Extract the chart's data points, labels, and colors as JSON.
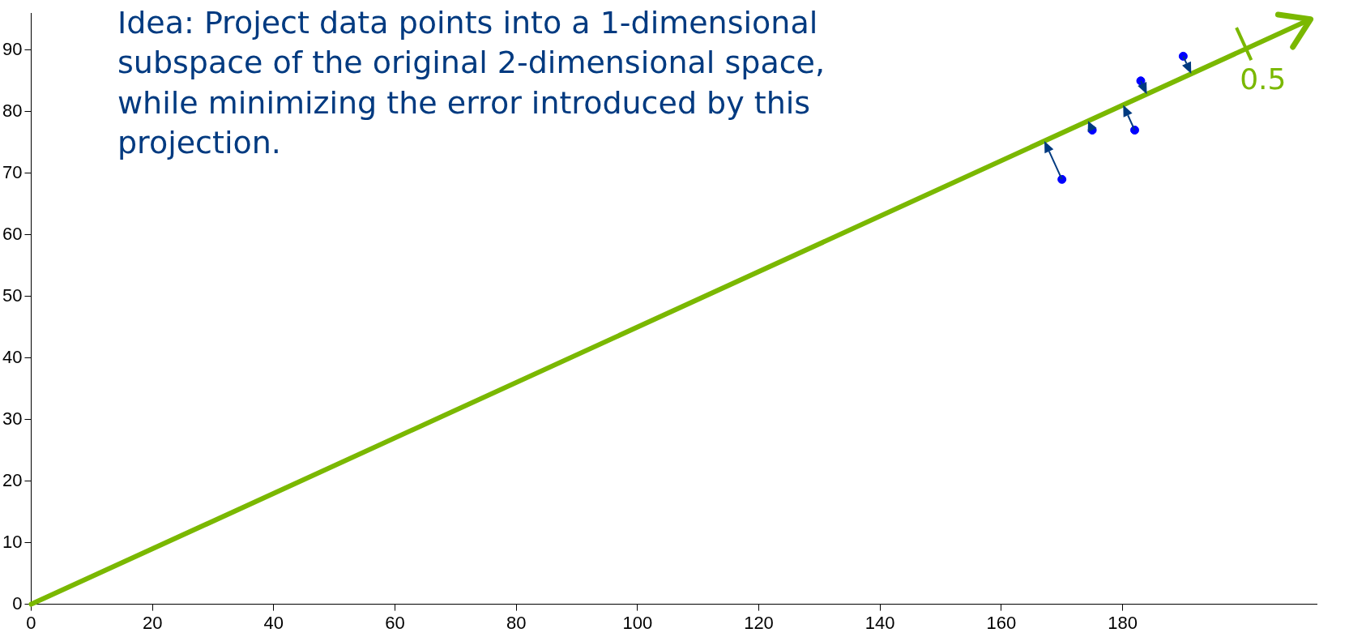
{
  "chart_data": {
    "type": "scatter",
    "title": "Idea: Project data points into a 1-dimensional subspace of the original 2-dimensional space, while minimizing the error introduced by this projection.",
    "xlim": [
      0,
      212
    ],
    "ylim": [
      0,
      96
    ],
    "xticks": [
      0,
      20,
      40,
      60,
      80,
      100,
      120,
      140,
      160,
      180
    ],
    "yticks": [
      0,
      10,
      20,
      30,
      40,
      50,
      60,
      70,
      80,
      90
    ],
    "grid": false,
    "legend": false,
    "series": [
      {
        "type": "line",
        "marker": "none",
        "color": "#7ab800",
        "x": [
          0,
          211
        ],
        "values": [
          0,
          95
        ]
      },
      {
        "marker": "circle",
        "color": "#0000ff",
        "x": [
          170,
          175,
          182,
          183,
          190
        ],
        "values": [
          69,
          77,
          77,
          85,
          89
        ]
      }
    ],
    "annotations": [
      {
        "text": "0.5",
        "x": 200,
        "y": 91
      }
    ]
  }
}
